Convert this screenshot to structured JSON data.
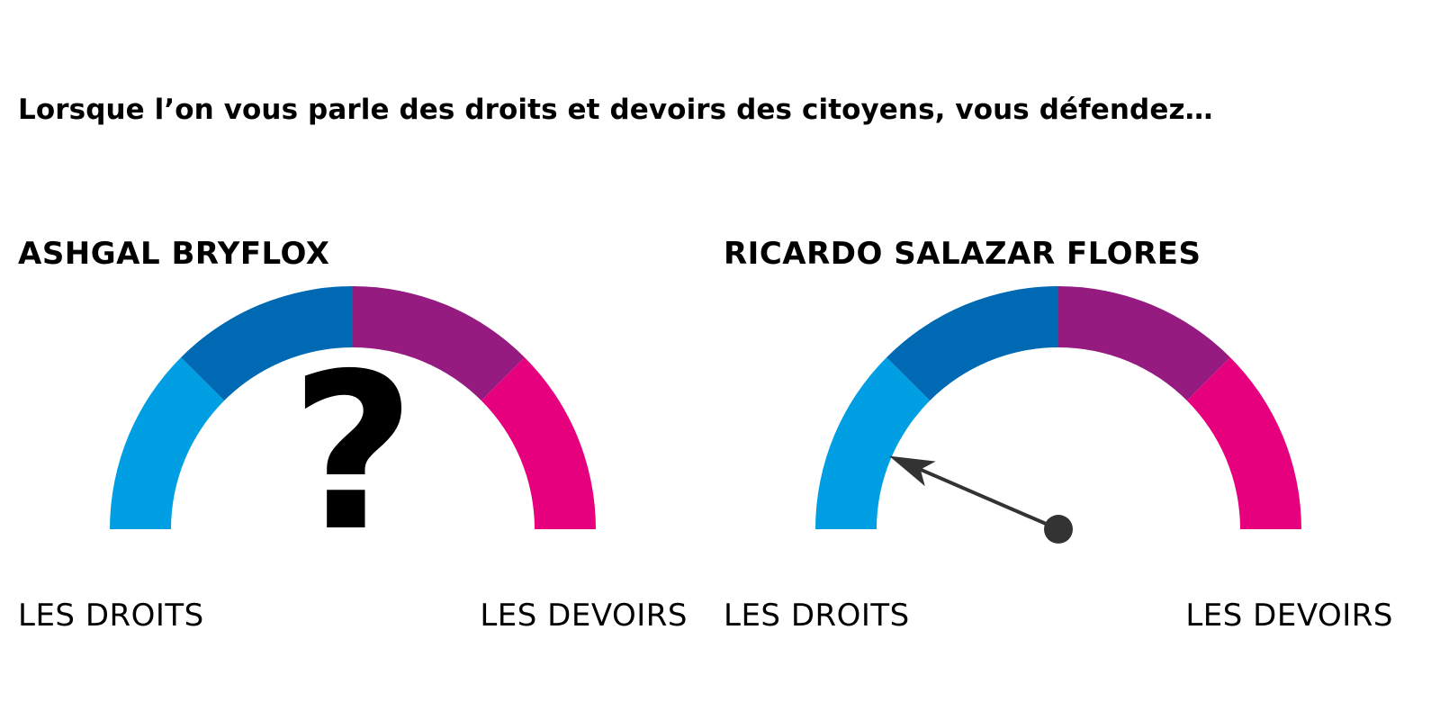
{
  "question": "Lorsque l’on vous parle des droits et devoirs des citoyens, vous défendez…",
  "segment_colors": [
    "#009fe3",
    "#0069b4",
    "#951b81",
    "#e6007e"
  ],
  "needle_color": "#333333",
  "gauges": [
    {
      "name": "ASHGAL BRYFLOX",
      "left_label": "LES DROITS",
      "right_label": "LES DEVOIRS",
      "state": "unknown",
      "unknown_symbol": "?"
    },
    {
      "name": "RICARDO SALAZAR FLORES",
      "left_label": "LES DROITS",
      "right_label": "LES DEVOIRS",
      "state": "answered",
      "value_fraction": 0.13
    }
  ]
}
